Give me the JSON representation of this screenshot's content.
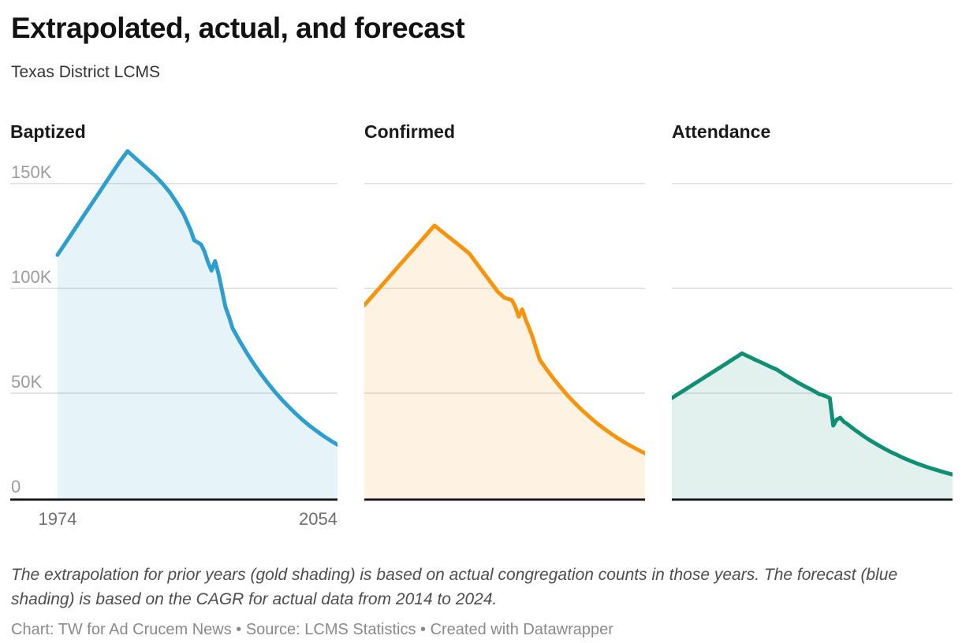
{
  "header": {
    "title": "Extrapolated, actual, and forecast",
    "subtitle": "Texas District LCMS"
  },
  "footer": {
    "note": "The extrapolation for prior years (gold shading) is based on actual congregation counts in those years. The forecast (blue shading) is based on the CAGR for actual data from 2014 to 2024.",
    "credit_prefix": "Chart: TW for Ad Crucem News • Source: LCMS Statistics • ",
    "datawrapper_credit": "Created with Datawrapper"
  },
  "chart_data": {
    "type": "area",
    "layout": "small-multiples",
    "grid": "horizontal",
    "values_in": "thousands",
    "forecast_from_year": 2024,
    "x": {
      "min": 1974,
      "max": 2054,
      "ticks": [
        "1974",
        "2054"
      ]
    },
    "y": {
      "min": 0,
      "max": 170,
      "ticks": [
        {
          "label": "150K",
          "value": 150
        },
        {
          "label": "100K",
          "value": 100
        },
        {
          "label": "50K",
          "value": 50
        },
        {
          "label": "0",
          "value": 0
        }
      ]
    },
    "panels": [
      {
        "title": "Baptized",
        "color": "#2E9ECF",
        "fill_opacity": 0.12,
        "points": [
          [
            1974,
            116
          ],
          [
            1976,
            121
          ],
          [
            1978,
            126
          ],
          [
            1980,
            131
          ],
          [
            1982,
            136
          ],
          [
            1984,
            141
          ],
          [
            1986,
            146
          ],
          [
            1988,
            151
          ],
          [
            1990,
            156
          ],
          [
            1992,
            161
          ],
          [
            1994,
            165.5
          ],
          [
            1996,
            162.5
          ],
          [
            1998,
            159.5
          ],
          [
            2000,
            156.5
          ],
          [
            2002,
            153.5
          ],
          [
            2004,
            150
          ],
          [
            2006,
            146
          ],
          [
            2008,
            141
          ],
          [
            2010,
            135.5
          ],
          [
            2012,
            128
          ],
          [
            2013,
            123
          ],
          [
            2014,
            122
          ],
          [
            2015,
            121
          ],
          [
            2016,
            117.5
          ],
          [
            2017,
            112.5
          ],
          [
            2018,
            108.5
          ],
          [
            2019,
            113
          ],
          [
            2020,
            107
          ],
          [
            2021,
            99
          ],
          [
            2022,
            91
          ],
          [
            2023,
            86.5
          ],
          [
            2024,
            81
          ],
          [
            2026,
            75
          ],
          [
            2028,
            69.4
          ],
          [
            2030,
            64.2
          ],
          [
            2032,
            59.4
          ],
          [
            2034,
            55
          ],
          [
            2036,
            50.9
          ],
          [
            2038,
            47.1
          ],
          [
            2040,
            43.6
          ],
          [
            2042,
            40.3
          ],
          [
            2044,
            37.3
          ],
          [
            2046,
            34.5
          ],
          [
            2048,
            32
          ],
          [
            2050,
            29.6
          ],
          [
            2052,
            27.4
          ],
          [
            2054,
            25.4
          ]
        ]
      },
      {
        "title": "Confirmed",
        "color": "#F7940E",
        "fill_opacity": 0.12,
        "points": [
          [
            1974,
            92
          ],
          [
            1979,
            101.5
          ],
          [
            1984,
            111
          ],
          [
            1989,
            120.5
          ],
          [
            1994,
            130
          ],
          [
            1996,
            127.3
          ],
          [
            1998,
            124.6
          ],
          [
            2000,
            122
          ],
          [
            2002,
            119.3
          ],
          [
            2004,
            116.5
          ],
          [
            2006,
            112
          ],
          [
            2008,
            107.5
          ],
          [
            2010,
            103
          ],
          [
            2012,
            98.5
          ],
          [
            2013,
            97
          ],
          [
            2014,
            95.5
          ],
          [
            2015,
            95
          ],
          [
            2016,
            94.5
          ],
          [
            2017,
            91.5
          ],
          [
            2018,
            86.5
          ],
          [
            2019,
            90
          ],
          [
            2020,
            85
          ],
          [
            2021,
            81
          ],
          [
            2022,
            76.5
          ],
          [
            2023,
            71
          ],
          [
            2024,
            66
          ],
          [
            2026,
            61.2
          ],
          [
            2028,
            56.8
          ],
          [
            2030,
            52.7
          ],
          [
            2032,
            48.8
          ],
          [
            2034,
            45.3
          ],
          [
            2036,
            42
          ],
          [
            2038,
            39
          ],
          [
            2040,
            36.1
          ],
          [
            2042,
            33.5
          ],
          [
            2044,
            31.1
          ],
          [
            2046,
            28.8
          ],
          [
            2048,
            26.7
          ],
          [
            2050,
            24.8
          ],
          [
            2052,
            23
          ],
          [
            2054,
            21.3
          ]
        ]
      },
      {
        "title": "Attendance",
        "color": "#0F8F74",
        "fill_opacity": 0.12,
        "points": [
          [
            1974,
            47.7
          ],
          [
            1979,
            53
          ],
          [
            1984,
            58.3
          ],
          [
            1989,
            63.6
          ],
          [
            1994,
            69
          ],
          [
            1996,
            67.4
          ],
          [
            1998,
            65.8
          ],
          [
            2000,
            64.3
          ],
          [
            2002,
            62.7
          ],
          [
            2004,
            61.2
          ],
          [
            2006,
            59
          ],
          [
            2008,
            57
          ],
          [
            2010,
            55
          ],
          [
            2012,
            53.2
          ],
          [
            2014,
            51.5
          ],
          [
            2016,
            49.6
          ],
          [
            2017,
            49.1
          ],
          [
            2018,
            48.5
          ],
          [
            2019,
            47.7
          ],
          [
            2020,
            34.6
          ],
          [
            2021,
            37.5
          ],
          [
            2022,
            38.3
          ],
          [
            2023,
            36.4
          ],
          [
            2024,
            35.3
          ],
          [
            2026,
            32.7
          ],
          [
            2028,
            30.3
          ],
          [
            2030,
            28
          ],
          [
            2032,
            26
          ],
          [
            2034,
            24.1
          ],
          [
            2036,
            22.3
          ],
          [
            2038,
            20.7
          ],
          [
            2040,
            19.1
          ],
          [
            2042,
            17.7
          ],
          [
            2044,
            16.4
          ],
          [
            2046,
            15.2
          ],
          [
            2048,
            14.1
          ],
          [
            2050,
            13.1
          ],
          [
            2052,
            12.1
          ],
          [
            2054,
            11.2
          ]
        ]
      }
    ]
  }
}
